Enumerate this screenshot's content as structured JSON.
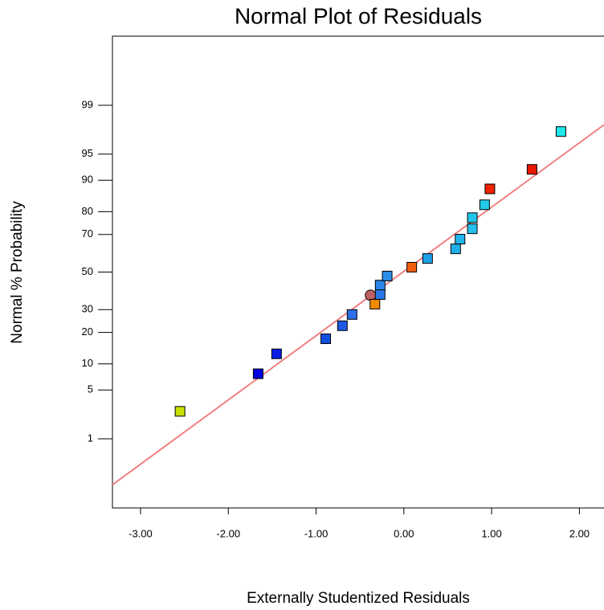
{
  "chart_data": {
    "type": "scatter",
    "title": "Normal Plot of Residuals",
    "xlabel": "Externally Studentized Residuals",
    "ylabel": "Normal % Probability",
    "yscale": "probit",
    "xlim": [
      -3.32,
      2.28
    ],
    "ylim": [
      0.05,
      99.95
    ],
    "xticks": [
      {
        "value": -3,
        "label": "-3.00"
      },
      {
        "value": -2,
        "label": "-2.00"
      },
      {
        "value": -1,
        "label": "-1.00"
      },
      {
        "value": 0,
        "label": "0.00"
      },
      {
        "value": 1,
        "label": "1.00"
      },
      {
        "value": 2,
        "label": "2.00"
      }
    ],
    "yticks": [
      1,
      5,
      10,
      20,
      30,
      50,
      70,
      80,
      90,
      95,
      99
    ],
    "x": [
      -2.55,
      -1.66,
      -1.45,
      -0.89,
      -0.7,
      -0.59,
      -0.38,
      -0.33,
      -0.27,
      -0.27,
      -0.19,
      0.09,
      0.27,
      0.59,
      0.64,
      0.78,
      0.78,
      0.92,
      0.98,
      1.46,
      1.79
    ],
    "values": [
      2.6,
      7.8,
      12.7,
      17.6,
      22.7,
      27.7,
      37.3,
      32.7,
      37.7,
      42.8,
      47.8,
      52.7,
      57.5,
      62.7,
      67.7,
      72.7,
      77.6,
      82.6,
      87.7,
      92.4,
      97.5
    ],
    "colors": [
      "#c8e000",
      "#0000e0",
      "#0a1ee8",
      "#1450e0",
      "#1e5ae6",
      "#2a6ee8",
      "#c06060",
      "#f08a00",
      "#2878e8",
      "#2a86e8",
      "#2a8ee8",
      "#f06010",
      "#1ea0e8",
      "#20b0e8",
      "#22b4ea",
      "#22c0ea",
      "#22c4ea",
      "#22ccea",
      "#f02000",
      "#e81800",
      "#20e8e8"
    ],
    "markers": [
      "square",
      "square",
      "square",
      "square",
      "square",
      "square",
      "circle",
      "square",
      "square",
      "square",
      "square",
      "square",
      "square",
      "square",
      "square",
      "square",
      "square",
      "square",
      "square",
      "square",
      "square"
    ],
    "fit_line": {
      "color": "#f08080",
      "x": [
        -3.32,
        2.28
      ],
      "values": [
        0.15,
        98.0
      ]
    }
  }
}
